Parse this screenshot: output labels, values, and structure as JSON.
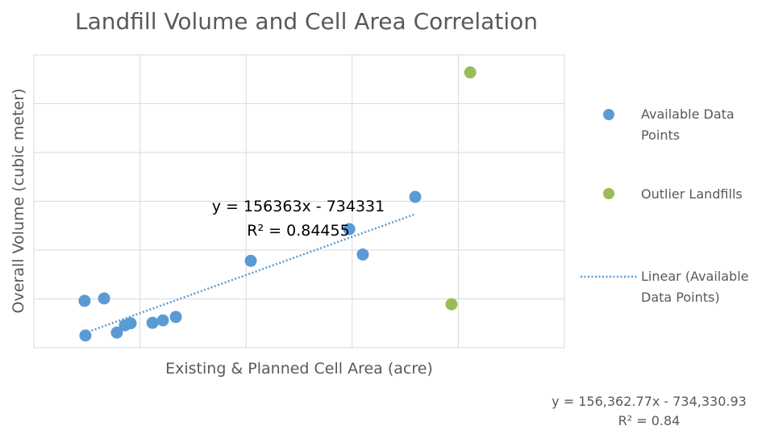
{
  "chart_data": {
    "type": "scatter",
    "title": "Landfill Volume and Cell Area Correlation",
    "x_label": "Existing & Planned Cell Area (acre)",
    "y_label": "Overall Volume (cubic meter)",
    "xlim": [
      0,
      250
    ],
    "xticks": [
      0,
      50,
      100,
      150,
      200,
      250
    ],
    "ylim": [
      0,
      60000000
    ],
    "yticks": [
      0,
      10000000,
      20000000,
      30000000,
      40000000,
      50000000,
      60000000
    ],
    "grid": true,
    "legend": "right",
    "series": [
      {
        "name": "Available Data Points",
        "color": "#5b9bd5",
        "x": [
          23.9,
          33.1,
          24.3,
          39.1,
          42.9,
          45.6,
          55.9,
          60.8,
          66.9,
          102.2,
          148.6,
          155.0,
          179.7
        ],
        "values": [
          9600000,
          10100000,
          2500000,
          3100000,
          4600000,
          5000000,
          5100000,
          5600000,
          6300000,
          17800000,
          24300000,
          19100000,
          30900000
        ]
      },
      {
        "name": "Outlier Landfills",
        "color": "#9bbb59",
        "x": [
          205.6,
          196.8
        ],
        "values": [
          56400000,
          8900000
        ]
      }
    ],
    "trendline": {
      "name": "Linear (Available Data Points)",
      "color": "#5b9bd5",
      "slope": 156363,
      "intercept": -734331,
      "equation": "y = 156363x - 734331",
      "r2": "R² = 0.84455"
    },
    "annotations": [
      "y = 156,362.77x - 734,330.93",
      "R² = 0.84"
    ]
  }
}
